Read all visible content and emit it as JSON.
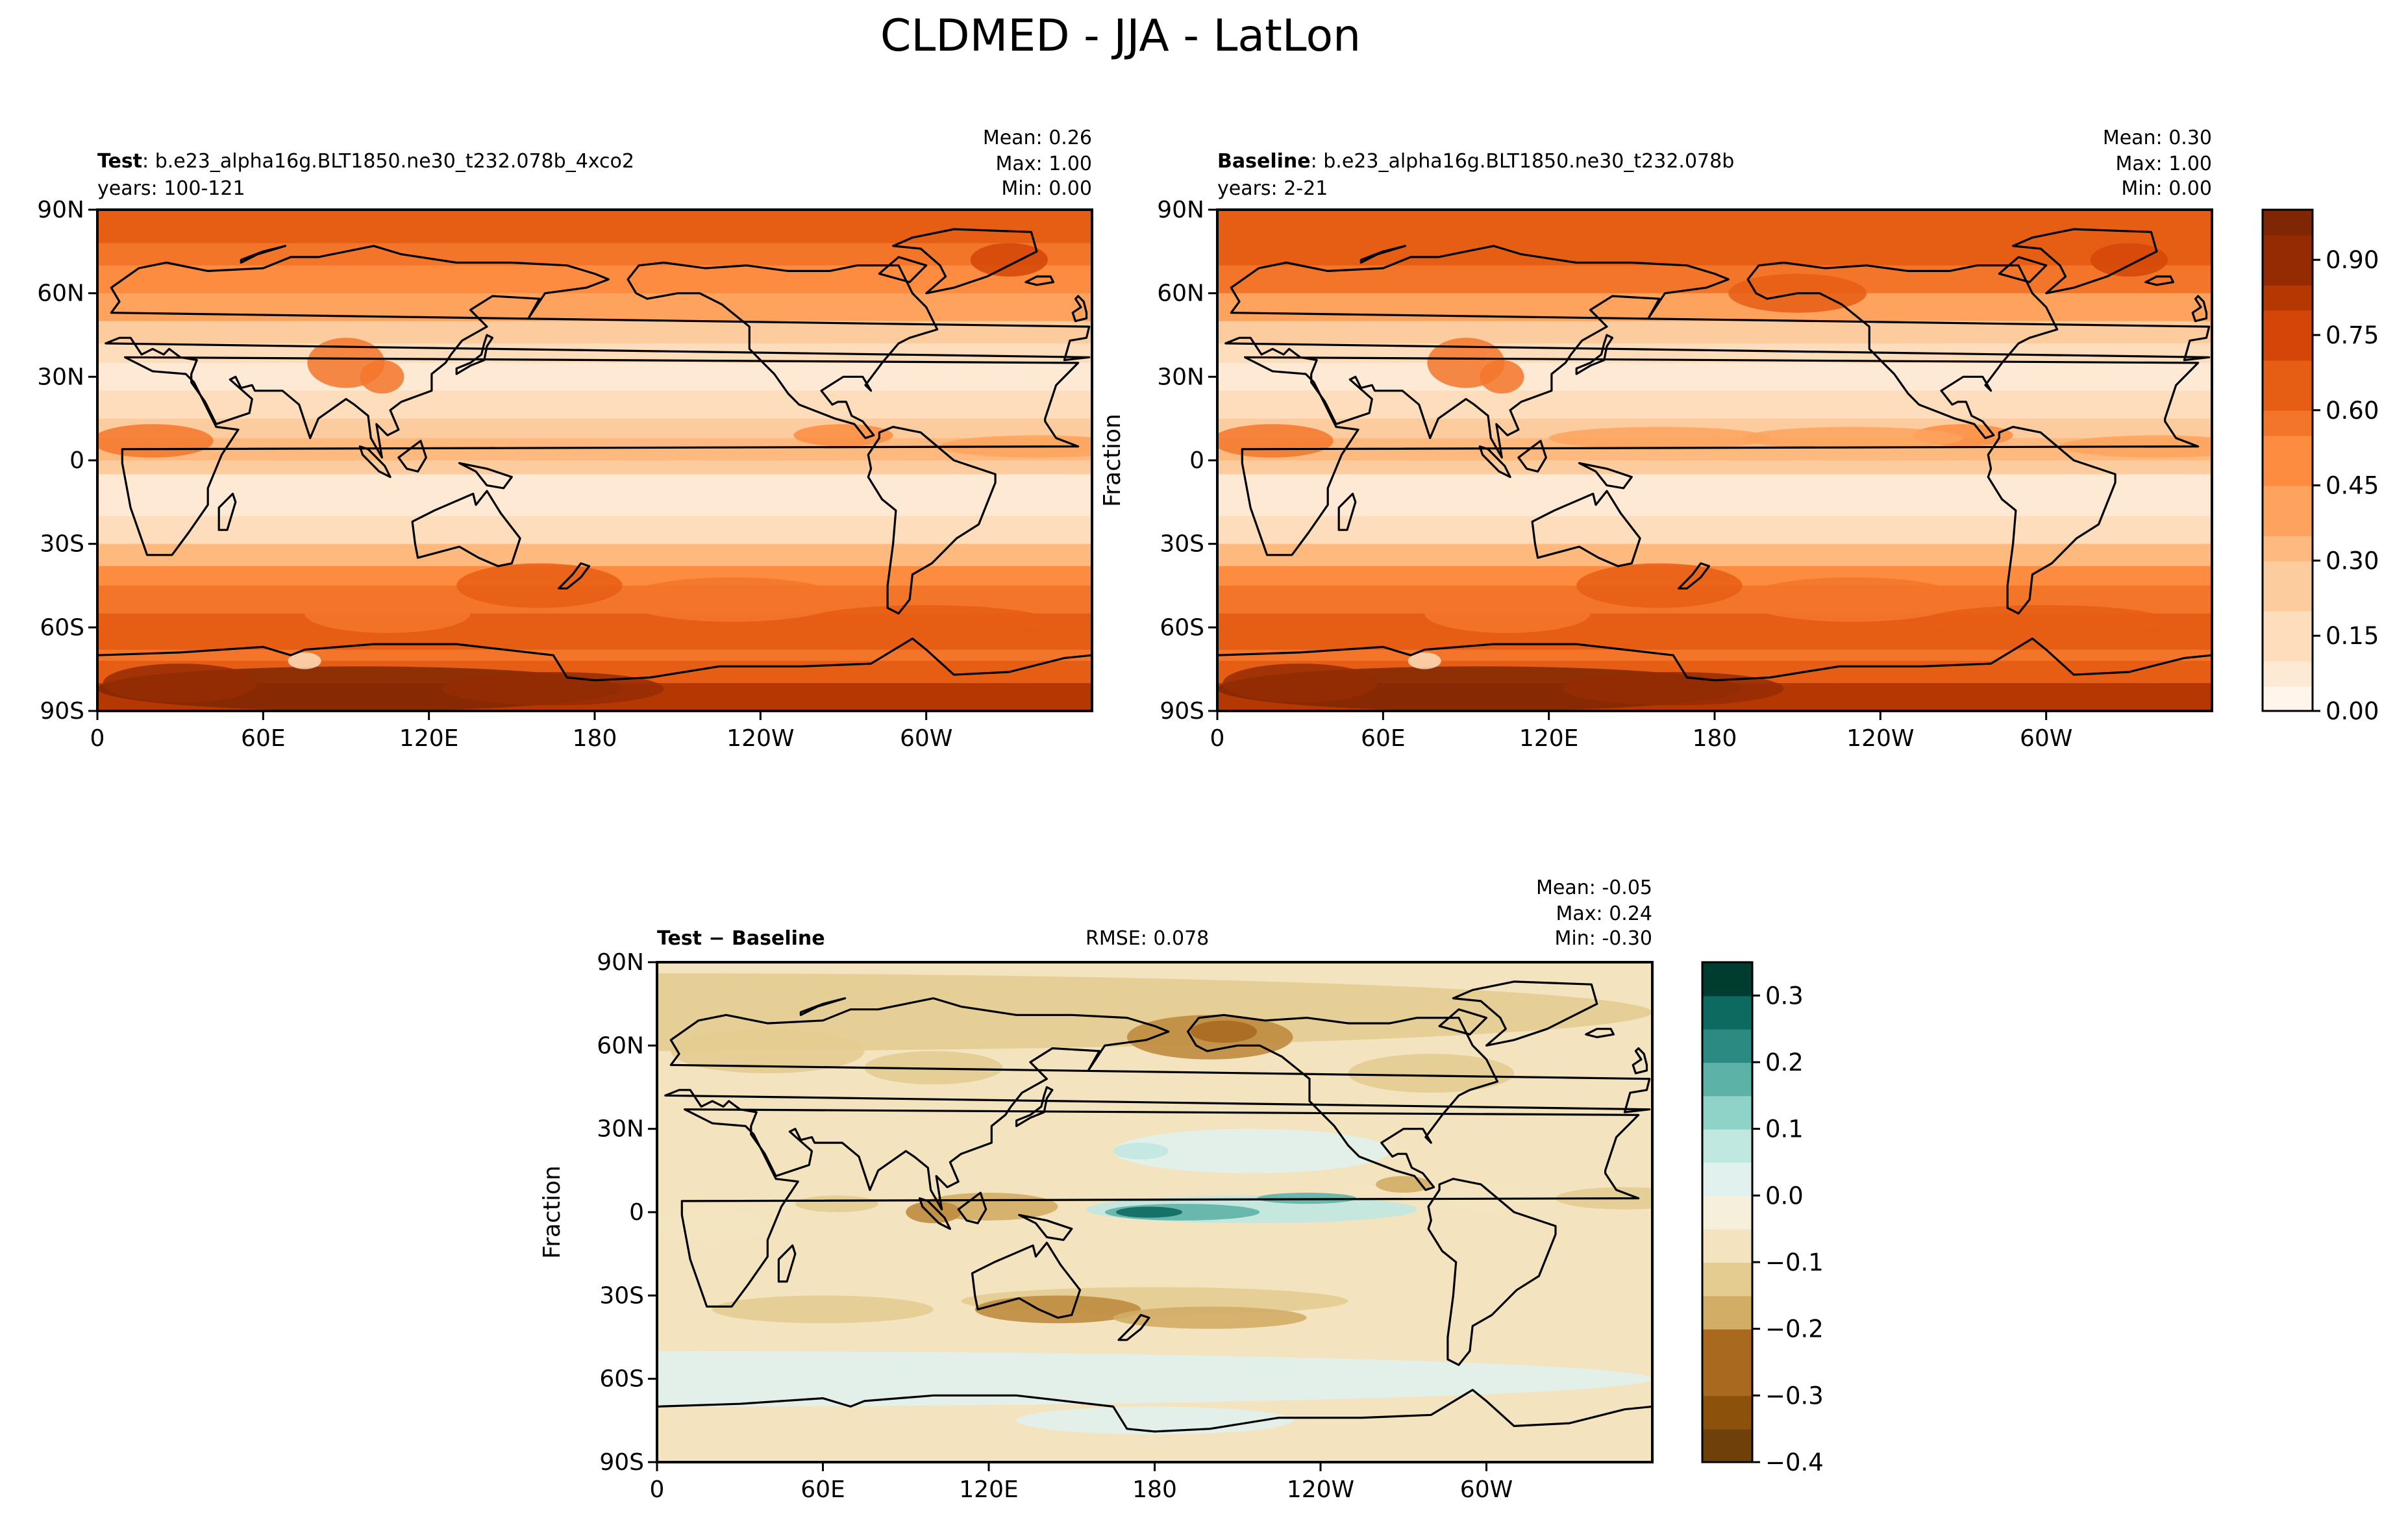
{
  "figure": {
    "title": "CLDMED - JJA - LatLon"
  },
  "panels": [
    {
      "id": "test",
      "label_bold": "Test",
      "label_sep": ": ",
      "case_name": "b.e23_alpha16g.BLT1850.ne30_t232.078b_4xco2",
      "years": "years: 100-121",
      "stats": {
        "mean": "Mean:  0.26",
        "max": "Max:  1.00",
        "min": "Min:  0.00"
      },
      "ylabel": "",
      "colormap": "Oranges"
    },
    {
      "id": "baseline",
      "label_bold": "Baseline",
      "label_sep": ": ",
      "case_name": "b.e23_alpha16g.BLT1850.ne30_t232.078b",
      "years": "years: 2-21",
      "stats": {
        "mean": "Mean:  0.30",
        "max": "Max:  1.00",
        "min": "Min:  0.00"
      },
      "ylabel": "Fraction",
      "colormap": "Oranges"
    },
    {
      "id": "diff",
      "label_bold": "Test − Baseline",
      "rmse": "RMSE: 0.078",
      "stats": {
        "mean": "Mean: -0.05",
        "max": "Max:  0.24",
        "min": "Min: -0.30"
      },
      "ylabel": "Fraction",
      "colormap": "BrBG"
    }
  ],
  "axes": {
    "lat_ticks": [
      "90N",
      "60N",
      "30N",
      "0",
      "30S",
      "60S",
      "90S"
    ],
    "lon_ticks": [
      "0",
      "60E",
      "120E",
      "180",
      "120W",
      "60W"
    ]
  },
  "colorbars": [
    {
      "id": "abs",
      "tick_labels": [
        "0.00",
        "0.15",
        "0.30",
        "0.45",
        "0.60",
        "0.75",
        "0.90"
      ],
      "tick_values": [
        0.0,
        0.15,
        0.3,
        0.45,
        0.6,
        0.75,
        0.9
      ],
      "range": [
        0.0,
        1.0
      ],
      "levels": 20,
      "colors": [
        "#fff5eb",
        "#fee9d4",
        "#fdddbb",
        "#fdcc9e",
        "#fdb97e",
        "#fda35e",
        "#fd8c41",
        "#f3752a",
        "#e65d14",
        "#d34607",
        "#b53802",
        "#952b03",
        "#7f2704"
      ]
    },
    {
      "id": "diff",
      "tick_labels": [
        "0.3",
        "0.2",
        "0.1",
        "0.0",
        "−0.1",
        "−0.2",
        "−0.3",
        "−0.4"
      ],
      "tick_values": [
        0.3,
        0.2,
        0.1,
        0.0,
        -0.1,
        -0.2,
        -0.3,
        -0.4
      ],
      "range": [
        -0.4,
        0.35
      ],
      "levels": 15,
      "colors": [
        "#543005",
        "#6f4009",
        "#8c520c",
        "#a96a20",
        "#bf8b40",
        "#d2ad66",
        "#e4cc91",
        "#f3e4bf",
        "#f6efdc",
        "#e1f1ee",
        "#c1e7e1",
        "#8fd3c8",
        "#5db2a8",
        "#2b8a81",
        "#0d6a61",
        "#003c30"
      ]
    }
  ],
  "chart_data": [
    {
      "type": "heatmap",
      "title": "Test: b.e23_alpha16g.BLT1850.ne30_t232.078b_4xco2",
      "ylabel": "",
      "x": [
        "0",
        "60E",
        "120E",
        "180",
        "120W",
        "60W"
      ],
      "y": [
        "90N",
        "60N",
        "30N",
        "0",
        "30S",
        "60S",
        "90S"
      ],
      "xlim": [
        0,
        360
      ],
      "ylim": [
        -90,
        90
      ],
      "zlim": [
        0.0,
        1.0
      ],
      "stats": {
        "mean": 0.26,
        "max": 1.0,
        "min": 0.0
      }
    },
    {
      "type": "heatmap",
      "title": "Baseline: b.e23_alpha16g.BLT1850.ne30_t232.078b",
      "ylabel": "Fraction",
      "x": [
        "0",
        "60E",
        "120E",
        "180",
        "120W",
        "60W"
      ],
      "y": [
        "90N",
        "60N",
        "30N",
        "0",
        "30S",
        "60S",
        "90S"
      ],
      "xlim": [
        0,
        360
      ],
      "ylim": [
        -90,
        90
      ],
      "zlim": [
        0.0,
        1.0
      ],
      "stats": {
        "mean": 0.3,
        "max": 1.0,
        "min": 0.0
      }
    },
    {
      "type": "heatmap",
      "title": "Test − Baseline",
      "ylabel": "Fraction",
      "x": [
        "0",
        "60E",
        "120E",
        "180",
        "120W",
        "60W"
      ],
      "y": [
        "90N",
        "60N",
        "30N",
        "0",
        "30S",
        "60S",
        "90S"
      ],
      "xlim": [
        0,
        360
      ],
      "ylim": [
        -90,
        90
      ],
      "zlim": [
        -0.4,
        0.35
      ],
      "rmse": 0.078,
      "stats": {
        "mean": -0.05,
        "max": 0.24,
        "min": -0.3
      }
    }
  ]
}
